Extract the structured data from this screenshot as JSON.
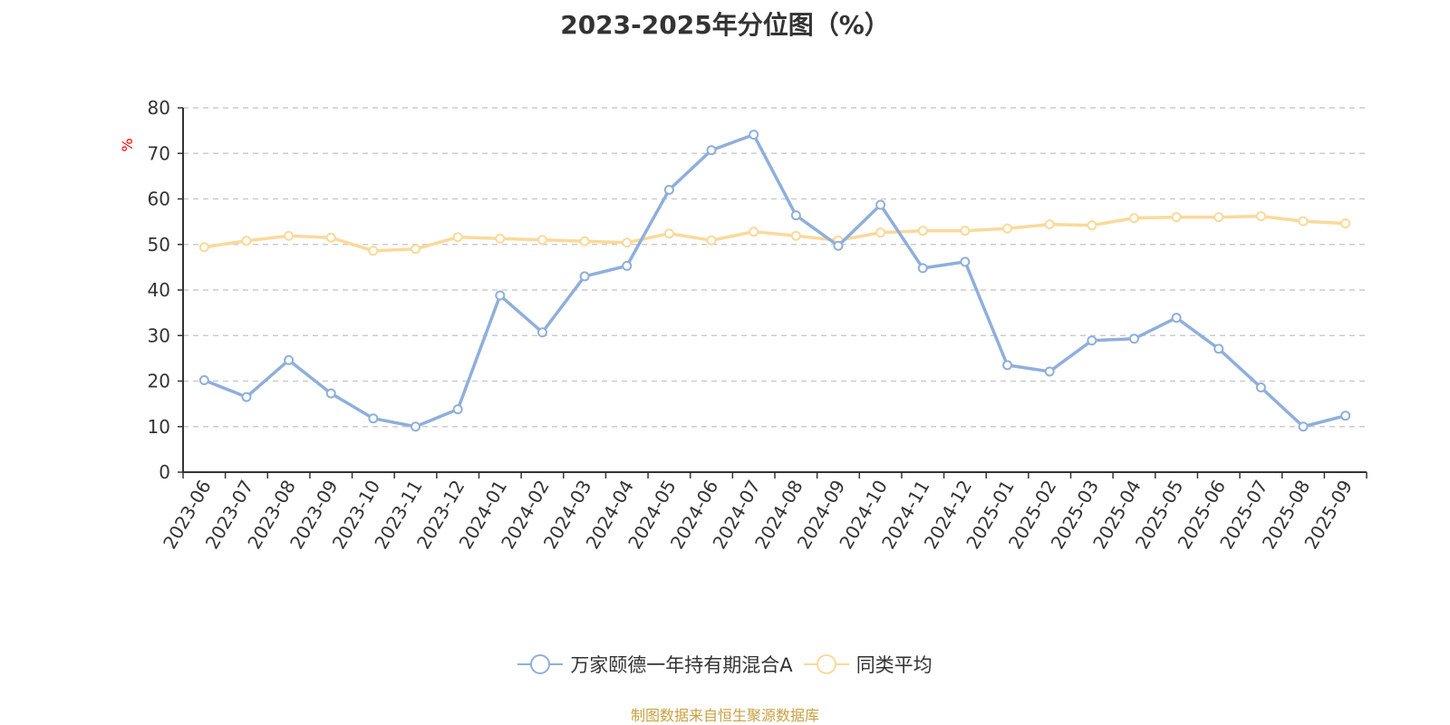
{
  "chart_data": {
    "type": "line",
    "title": "2023-2025年分位图（%）",
    "ylabel": "%",
    "xlabel": "",
    "ylim": [
      0,
      80
    ],
    "yticks": [
      0,
      10,
      20,
      30,
      40,
      50,
      60,
      70,
      80
    ],
    "grid": true,
    "legend_position": "bottom",
    "categories": [
      "2023-06",
      "2023-07",
      "2023-08",
      "2023-09",
      "2023-10",
      "2023-11",
      "2023-12",
      "2024-01",
      "2024-02",
      "2024-03",
      "2024-04",
      "2024-05",
      "2024-06",
      "2024-07",
      "2024-08",
      "2024-09",
      "2024-10",
      "2024-11",
      "2024-12",
      "2025-01",
      "2025-02",
      "2025-03",
      "2025-04",
      "2025-05",
      "2025-06",
      "2025-07",
      "2025-08",
      "2025-09"
    ],
    "series": [
      {
        "name": "万家颐德一年持有期混合A",
        "color": "#8fafdb",
        "values": [
          20.2,
          16.5,
          24.6,
          17.3,
          11.8,
          10.0,
          13.8,
          38.8,
          30.7,
          43.0,
          45.3,
          62.0,
          70.7,
          74.1,
          56.4,
          49.7,
          58.7,
          44.8,
          46.2,
          23.5,
          22.1,
          28.9,
          29.3,
          33.9,
          27.1,
          18.6,
          10.0,
          12.4
        ]
      },
      {
        "name": "同类平均",
        "color": "#fbd99a",
        "values": [
          49.4,
          50.8,
          51.9,
          51.5,
          48.6,
          49.0,
          51.6,
          51.3,
          51.0,
          50.7,
          50.4,
          52.4,
          50.9,
          52.8,
          51.9,
          50.9,
          52.6,
          53.0,
          53.0,
          53.5,
          54.4,
          54.2,
          55.8,
          56.0,
          56.0,
          56.2,
          55.1,
          54.6
        ]
      }
    ]
  },
  "source_text": "制图数据来自恒生聚源数据库",
  "ylabel_color": "#ff0000",
  "source_color": "#c8a040"
}
